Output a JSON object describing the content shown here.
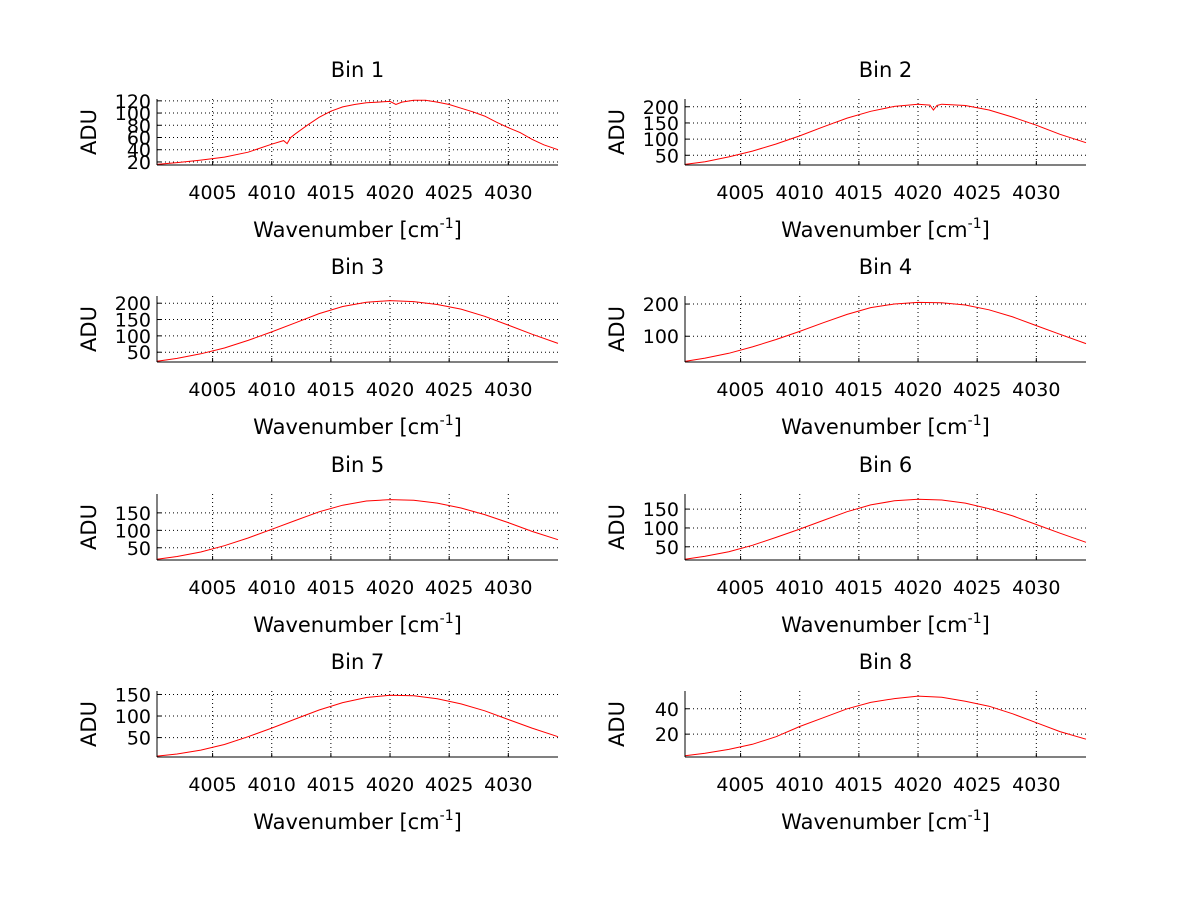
{
  "figure": {
    "line_color": "#ff0000",
    "axis_color": "#000000",
    "background": "#ffffff"
  },
  "chart_data": [
    {
      "type": "line",
      "title": "Bin 1",
      "xlabel": "Wavenumber [cm",
      "xlabel_sup": "-1",
      "xlabel_end": "]",
      "ylabel": "ADU",
      "xlim": [
        4000.3,
        4034.2
      ],
      "ylim": [
        15,
        123
      ],
      "xticks": [
        4005,
        4010,
        4015,
        4020,
        4025,
        4030
      ],
      "yticks": [
        20,
        40,
        60,
        80,
        100,
        120
      ],
      "ytick_labels": [
        "20",
        "40",
        "60",
        "80",
        "100",
        "120"
      ],
      "grid": true,
      "series": [
        {
          "name": "Bin 1",
          "x": [
            4000.3,
            4002,
            4004,
            4006,
            4008,
            4010,
            4011,
            4011.3,
            4011.6,
            4012,
            4013,
            4014,
            4015,
            4016,
            4017,
            4018,
            4019,
            4020,
            4020.5,
            4021,
            4022,
            4023,
            4024,
            4025,
            4026,
            4027,
            4028,
            4029,
            4030,
            4031,
            4032,
            4033,
            4034.2
          ],
          "y": [
            16,
            19,
            23,
            28,
            36,
            49,
            55,
            50,
            60,
            66,
            80,
            93,
            103,
            110,
            114,
            117,
            118,
            119,
            114,
            118,
            121,
            121,
            118,
            114,
            108,
            102,
            95,
            85,
            76,
            68,
            57,
            48,
            40
          ]
        }
      ]
    },
    {
      "type": "line",
      "title": "Bin 2",
      "xlabel": "Wavenumber [cm",
      "xlabel_sup": "-1",
      "xlabel_end": "]",
      "ylabel": "ADU",
      "xlim": [
        4000.3,
        4034.2
      ],
      "ylim": [
        20,
        224
      ],
      "xticks": [
        4005,
        4010,
        4015,
        4020,
        4025,
        4030
      ],
      "yticks": [
        50,
        100,
        150,
        200
      ],
      "ytick_labels": [
        "50",
        "100",
        "150",
        "200"
      ],
      "grid": true,
      "series": [
        {
          "name": "Bin 2",
          "x": [
            4000.3,
            4002,
            4004,
            4006,
            4008,
            4010,
            4012,
            4014,
            4016,
            4018,
            4020,
            4021,
            4021.3,
            4021.6,
            4022,
            4024,
            4026,
            4028,
            4030,
            4032,
            4034.2
          ],
          "y": [
            22,
            30,
            45,
            63,
            85,
            110,
            138,
            165,
            186,
            201,
            208,
            205,
            190,
            204,
            208,
            204,
            190,
            168,
            143,
            115,
            89
          ]
        }
      ]
    },
    {
      "type": "line",
      "title": "Bin 3",
      "xlabel": "Wavenumber [cm",
      "xlabel_sup": "-1",
      "xlabel_end": "]",
      "ylabel": "ADU",
      "xlim": [
        4000.3,
        4034.2
      ],
      "ylim": [
        20,
        222
      ],
      "xticks": [
        4005,
        4010,
        4015,
        4020,
        4025,
        4030
      ],
      "yticks": [
        50,
        100,
        150,
        200
      ],
      "ytick_labels": [
        "50",
        "100",
        "150",
        "200"
      ],
      "grid": true,
      "series": [
        {
          "name": "Bin 3",
          "x": [
            4000.3,
            4002,
            4004,
            4006,
            4008,
            4010,
            4012,
            4014,
            4016,
            4018,
            4020,
            4022,
            4024,
            4026,
            4028,
            4030,
            4032,
            4034.2
          ],
          "y": [
            22,
            31,
            45,
            63,
            86,
            112,
            140,
            168,
            190,
            203,
            208,
            205,
            196,
            182,
            160,
            133,
            105,
            77
          ]
        }
      ]
    },
    {
      "type": "line",
      "title": "Bin 4",
      "xlabel": "Wavenumber [cm",
      "xlabel_sup": "-1",
      "xlabel_end": "]",
      "ylabel": "ADU",
      "xlim": [
        4000.3,
        4034.2
      ],
      "ylim": [
        20,
        225
      ],
      "xticks": [
        4005,
        4010,
        4015,
        4020,
        4025,
        4030
      ],
      "yticks": [
        100,
        200
      ],
      "ytick_labels": [
        "100",
        "200"
      ],
      "grid": true,
      "series": [
        {
          "name": "Bin 4",
          "x": [
            4000.3,
            4002,
            4004,
            4006,
            4008,
            4010,
            4012,
            4014,
            4016,
            4018,
            4020,
            4022,
            4024,
            4026,
            4028,
            4030,
            4032,
            4034.2
          ],
          "y": [
            22,
            32,
            47,
            67,
            90,
            115,
            142,
            168,
            189,
            200,
            205,
            204,
            197,
            182,
            160,
            133,
            106,
            77
          ]
        }
      ]
    },
    {
      "type": "line",
      "title": "Bin 5",
      "xlabel": "Wavenumber [cm",
      "xlabel_sup": "-1",
      "xlabel_end": "]",
      "ylabel": "ADU",
      "xlim": [
        4000.3,
        4034.2
      ],
      "ylim": [
        15,
        204
      ],
      "xticks": [
        4005,
        4010,
        4015,
        4020,
        4025,
        4030
      ],
      "yticks": [
        50,
        100,
        150
      ],
      "ytick_labels": [
        "50",
        "100",
        "150"
      ],
      "grid": true,
      "series": [
        {
          "name": "Bin 5",
          "x": [
            4000.3,
            4002,
            4004,
            4006,
            4008,
            4010,
            4012,
            4014,
            4016,
            4018,
            4020,
            4022,
            4024,
            4026,
            4028,
            4030,
            4032,
            4034.2
          ],
          "y": [
            17,
            25,
            38,
            56,
            78,
            103,
            128,
            153,
            172,
            184,
            188,
            186,
            178,
            164,
            145,
            122,
            97,
            73
          ]
        }
      ]
    },
    {
      "type": "line",
      "title": "Bin 6",
      "xlabel": "Wavenumber [cm",
      "xlabel_sup": "-1",
      "xlabel_end": "]",
      "ylabel": "ADU",
      "xlim": [
        4000.3,
        4034.2
      ],
      "ylim": [
        15,
        190
      ],
      "xticks": [
        4005,
        4010,
        4015,
        4020,
        4025,
        4030
      ],
      "yticks": [
        50,
        100,
        150
      ],
      "ytick_labels": [
        "50",
        "100",
        "150"
      ],
      "grid": true,
      "series": [
        {
          "name": "Bin 6",
          "x": [
            4000.3,
            4002,
            4004,
            4006,
            4008,
            4010,
            4012,
            4014,
            4016,
            4018,
            4020,
            4022,
            4024,
            4026,
            4028,
            4030,
            4032,
            4034.2
          ],
          "y": [
            17,
            25,
            37,
            54,
            75,
            97,
            120,
            143,
            161,
            172,
            176,
            174,
            166,
            151,
            132,
            109,
            86,
            62
          ]
        }
      ]
    },
    {
      "type": "line",
      "title": "Bin 7",
      "xlabel": "Wavenumber [cm",
      "xlabel_sup": "-1",
      "xlabel_end": "]",
      "ylabel": "ADU",
      "xlim": [
        4000.3,
        4034.2
      ],
      "ylim": [
        5,
        158
      ],
      "xticks": [
        4005,
        4010,
        4015,
        4020,
        4025,
        4030
      ],
      "yticks": [
        50,
        100,
        150
      ],
      "ytick_labels": [
        "50",
        "100",
        "150"
      ],
      "grid": true,
      "series": [
        {
          "name": "Bin 7",
          "x": [
            4000.3,
            4002,
            4004,
            4006,
            4008,
            4010,
            4012,
            4014,
            4016,
            4018,
            4020,
            4022,
            4024,
            4026,
            4028,
            4030,
            4032,
            4034.2
          ],
          "y": [
            7,
            12,
            21,
            34,
            52,
            72,
            93,
            114,
            131,
            143,
            148,
            147,
            140,
            128,
            112,
            92,
            72,
            52
          ]
        }
      ]
    },
    {
      "type": "line",
      "title": "Bin 8",
      "xlabel": "Wavenumber [cm",
      "xlabel_sup": "-1",
      "xlabel_end": "]",
      "ylabel": "ADU",
      "xlim": [
        4000.3,
        4034.2
      ],
      "ylim": [
        2,
        54
      ],
      "xticks": [
        4005,
        4010,
        4015,
        4020,
        4025,
        4030
      ],
      "yticks": [
        20,
        40
      ],
      "ytick_labels": [
        "20",
        "40"
      ],
      "grid": true,
      "series": [
        {
          "name": "Bin 8",
          "x": [
            4000.3,
            4002,
            4004,
            4006,
            4008,
            4010,
            4012,
            4014,
            4016,
            4018,
            4020,
            4022,
            4024,
            4026,
            4028,
            4030,
            4032,
            4034.2
          ],
          "y": [
            3,
            5,
            8,
            12,
            18,
            26,
            33,
            40,
            45,
            48,
            50,
            49,
            46,
            42,
            36,
            29,
            22,
            16
          ]
        }
      ]
    }
  ]
}
